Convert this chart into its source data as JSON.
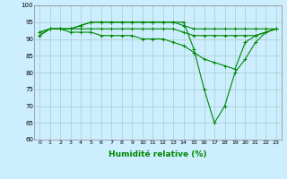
{
  "xlabel": "Humidité relative (%)",
  "background_color": "#cceeff",
  "grid_color": "#aacccc",
  "line_color": "#008800",
  "xlim": [
    -0.5,
    23.5
  ],
  "ylim": [
    60,
    100
  ],
  "yticks": [
    60,
    65,
    70,
    75,
    80,
    85,
    90,
    95,
    100
  ],
  "xticks": [
    0,
    1,
    2,
    3,
    4,
    5,
    6,
    7,
    8,
    9,
    10,
    11,
    12,
    13,
    14,
    15,
    16,
    17,
    18,
    19,
    20,
    21,
    22,
    23
  ],
  "series": [
    [
      92,
      93,
      93,
      93,
      94,
      95,
      95,
      95,
      95,
      95,
      95,
      95,
      95,
      95,
      95,
      87,
      75,
      65,
      70,
      80,
      84,
      89,
      92,
      93
    ],
    [
      92,
      93,
      93,
      93,
      94,
      95,
      95,
      95,
      95,
      95,
      95,
      95,
      95,
      95,
      94,
      93,
      93,
      93,
      93,
      93,
      93,
      93,
      93,
      93
    ],
    [
      91,
      93,
      93,
      93,
      93,
      93,
      93,
      93,
      93,
      93,
      93,
      93,
      93,
      93,
      92,
      91,
      91,
      91,
      91,
      91,
      91,
      91,
      92,
      93
    ],
    [
      91,
      93,
      93,
      92,
      92,
      92,
      91,
      91,
      91,
      91,
      90,
      90,
      90,
      89,
      88,
      86,
      84,
      83,
      82,
      81,
      89,
      91,
      92,
      93
    ]
  ]
}
